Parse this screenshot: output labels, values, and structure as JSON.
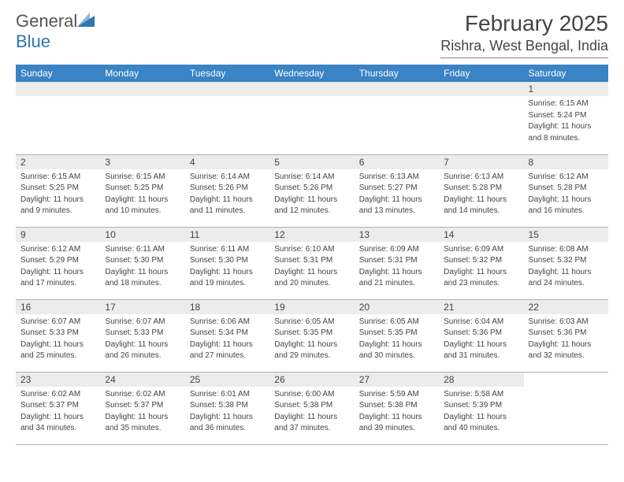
{
  "logo": {
    "word1": "General",
    "word2": "Blue",
    "icon_color": "#2f75b5",
    "text_gray": "#555555"
  },
  "title": {
    "month": "February 2025",
    "location": "Rishra, West Bengal, India"
  },
  "colors": {
    "header_bg": "#3a83c4",
    "header_fg": "#ffffff",
    "daynum_bg": "#ececec",
    "rule": "#b0b0b0",
    "text": "#444444"
  },
  "weekdays": [
    "Sunday",
    "Monday",
    "Tuesday",
    "Wednesday",
    "Thursday",
    "Friday",
    "Saturday"
  ],
  "weeks": [
    [
      null,
      null,
      null,
      null,
      null,
      null,
      {
        "n": "1",
        "sr": "Sunrise: 6:15 AM",
        "ss": "Sunset: 5:24 PM",
        "d1": "Daylight: 11 hours",
        "d2": "and 8 minutes."
      }
    ],
    [
      {
        "n": "2",
        "sr": "Sunrise: 6:15 AM",
        "ss": "Sunset: 5:25 PM",
        "d1": "Daylight: 11 hours",
        "d2": "and 9 minutes."
      },
      {
        "n": "3",
        "sr": "Sunrise: 6:15 AM",
        "ss": "Sunset: 5:25 PM",
        "d1": "Daylight: 11 hours",
        "d2": "and 10 minutes."
      },
      {
        "n": "4",
        "sr": "Sunrise: 6:14 AM",
        "ss": "Sunset: 5:26 PM",
        "d1": "Daylight: 11 hours",
        "d2": "and 11 minutes."
      },
      {
        "n": "5",
        "sr": "Sunrise: 6:14 AM",
        "ss": "Sunset: 5:26 PM",
        "d1": "Daylight: 11 hours",
        "d2": "and 12 minutes."
      },
      {
        "n": "6",
        "sr": "Sunrise: 6:13 AM",
        "ss": "Sunset: 5:27 PM",
        "d1": "Daylight: 11 hours",
        "d2": "and 13 minutes."
      },
      {
        "n": "7",
        "sr": "Sunrise: 6:13 AM",
        "ss": "Sunset: 5:28 PM",
        "d1": "Daylight: 11 hours",
        "d2": "and 14 minutes."
      },
      {
        "n": "8",
        "sr": "Sunrise: 6:12 AM",
        "ss": "Sunset: 5:28 PM",
        "d1": "Daylight: 11 hours",
        "d2": "and 16 minutes."
      }
    ],
    [
      {
        "n": "9",
        "sr": "Sunrise: 6:12 AM",
        "ss": "Sunset: 5:29 PM",
        "d1": "Daylight: 11 hours",
        "d2": "and 17 minutes."
      },
      {
        "n": "10",
        "sr": "Sunrise: 6:11 AM",
        "ss": "Sunset: 5:30 PM",
        "d1": "Daylight: 11 hours",
        "d2": "and 18 minutes."
      },
      {
        "n": "11",
        "sr": "Sunrise: 6:11 AM",
        "ss": "Sunset: 5:30 PM",
        "d1": "Daylight: 11 hours",
        "d2": "and 19 minutes."
      },
      {
        "n": "12",
        "sr": "Sunrise: 6:10 AM",
        "ss": "Sunset: 5:31 PM",
        "d1": "Daylight: 11 hours",
        "d2": "and 20 minutes."
      },
      {
        "n": "13",
        "sr": "Sunrise: 6:09 AM",
        "ss": "Sunset: 5:31 PM",
        "d1": "Daylight: 11 hours",
        "d2": "and 21 minutes."
      },
      {
        "n": "14",
        "sr": "Sunrise: 6:09 AM",
        "ss": "Sunset: 5:32 PM",
        "d1": "Daylight: 11 hours",
        "d2": "and 23 minutes."
      },
      {
        "n": "15",
        "sr": "Sunrise: 6:08 AM",
        "ss": "Sunset: 5:32 PM",
        "d1": "Daylight: 11 hours",
        "d2": "and 24 minutes."
      }
    ],
    [
      {
        "n": "16",
        "sr": "Sunrise: 6:07 AM",
        "ss": "Sunset: 5:33 PM",
        "d1": "Daylight: 11 hours",
        "d2": "and 25 minutes."
      },
      {
        "n": "17",
        "sr": "Sunrise: 6:07 AM",
        "ss": "Sunset: 5:33 PM",
        "d1": "Daylight: 11 hours",
        "d2": "and 26 minutes."
      },
      {
        "n": "18",
        "sr": "Sunrise: 6:06 AM",
        "ss": "Sunset: 5:34 PM",
        "d1": "Daylight: 11 hours",
        "d2": "and 27 minutes."
      },
      {
        "n": "19",
        "sr": "Sunrise: 6:05 AM",
        "ss": "Sunset: 5:35 PM",
        "d1": "Daylight: 11 hours",
        "d2": "and 29 minutes."
      },
      {
        "n": "20",
        "sr": "Sunrise: 6:05 AM",
        "ss": "Sunset: 5:35 PM",
        "d1": "Daylight: 11 hours",
        "d2": "and 30 minutes."
      },
      {
        "n": "21",
        "sr": "Sunrise: 6:04 AM",
        "ss": "Sunset: 5:36 PM",
        "d1": "Daylight: 11 hours",
        "d2": "and 31 minutes."
      },
      {
        "n": "22",
        "sr": "Sunrise: 6:03 AM",
        "ss": "Sunset: 5:36 PM",
        "d1": "Daylight: 11 hours",
        "d2": "and 32 minutes."
      }
    ],
    [
      {
        "n": "23",
        "sr": "Sunrise: 6:02 AM",
        "ss": "Sunset: 5:37 PM",
        "d1": "Daylight: 11 hours",
        "d2": "and 34 minutes."
      },
      {
        "n": "24",
        "sr": "Sunrise: 6:02 AM",
        "ss": "Sunset: 5:37 PM",
        "d1": "Daylight: 11 hours",
        "d2": "and 35 minutes."
      },
      {
        "n": "25",
        "sr": "Sunrise: 6:01 AM",
        "ss": "Sunset: 5:38 PM",
        "d1": "Daylight: 11 hours",
        "d2": "and 36 minutes."
      },
      {
        "n": "26",
        "sr": "Sunrise: 6:00 AM",
        "ss": "Sunset: 5:38 PM",
        "d1": "Daylight: 11 hours",
        "d2": "and 37 minutes."
      },
      {
        "n": "27",
        "sr": "Sunrise: 5:59 AM",
        "ss": "Sunset: 5:38 PM",
        "d1": "Daylight: 11 hours",
        "d2": "and 39 minutes."
      },
      {
        "n": "28",
        "sr": "Sunrise: 5:58 AM",
        "ss": "Sunset: 5:39 PM",
        "d1": "Daylight: 11 hours",
        "d2": "and 40 minutes."
      },
      null
    ]
  ]
}
